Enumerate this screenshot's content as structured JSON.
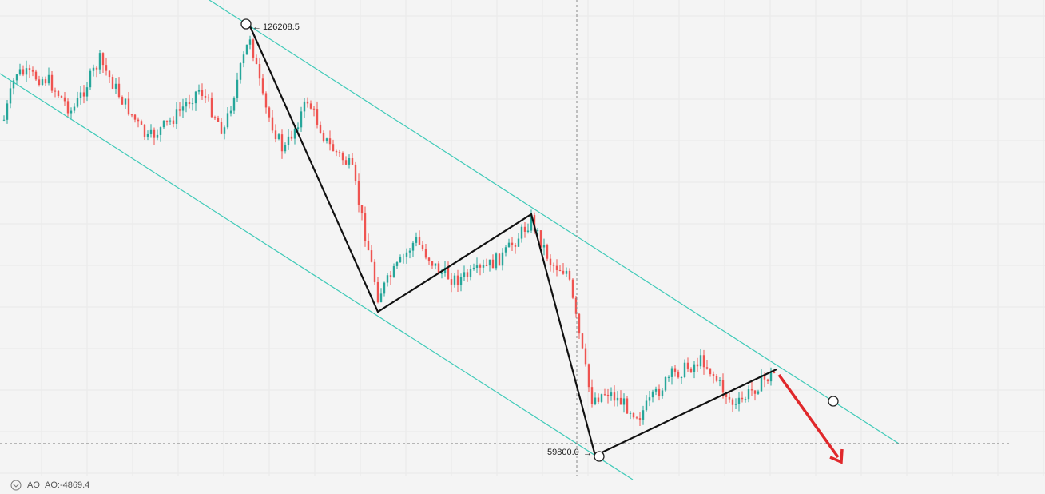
{
  "annotations": {
    "high": "126208.5",
    "low": "59800.0"
  },
  "indicator": {
    "name": "AO",
    "value": "AO:-4869.4"
  }
}
